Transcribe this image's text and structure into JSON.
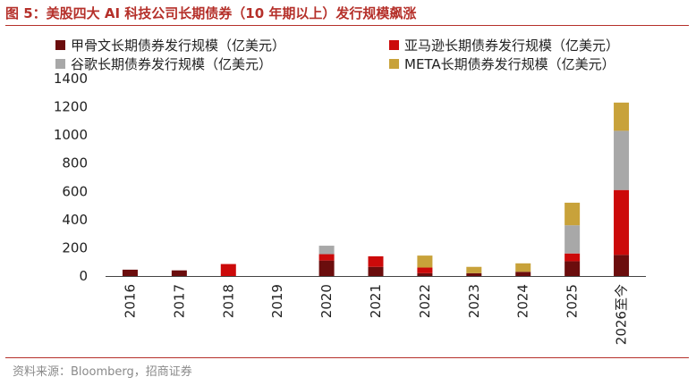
{
  "figure": {
    "title": "图 5：美股四大 AI 科技公司长期债券（10 年期以上）发行规模飙涨",
    "source": "资料来源：Bloomberg，招商证券"
  },
  "chart_data": {
    "type": "bar",
    "stacked": true,
    "categories": [
      "2016",
      "2017",
      "2018",
      "2019",
      "2020",
      "2021",
      "2022",
      "2023",
      "2024",
      "2025",
      "2026至今"
    ],
    "series": [
      {
        "name": "甲骨文长期债券发行规模（亿美元）",
        "color": "#6b0d0d",
        "values": [
          45,
          40,
          0,
          0,
          110,
          65,
          20,
          20,
          30,
          105,
          150
        ]
      },
      {
        "name": "亚马逊长期债券发行规模（亿美元）",
        "color": "#cc0a0a",
        "values": [
          0,
          0,
          85,
          0,
          45,
          75,
          40,
          0,
          0,
          55,
          460
        ]
      },
      {
        "name": "谷歌长期债券发行规模（亿美元）",
        "color": "#a8a8a8",
        "values": [
          0,
          0,
          0,
          0,
          60,
          0,
          0,
          0,
          0,
          200,
          420
        ]
      },
      {
        "name": "META长期债券发行规模（亿美元）",
        "color": "#c8a23a",
        "values": [
          0,
          0,
          0,
          0,
          0,
          0,
          85,
          45,
          60,
          160,
          200
        ]
      }
    ],
    "yticks": [
      0,
      200,
      400,
      600,
      800,
      1000,
      1200,
      1400
    ],
    "ylim": [
      0,
      1400
    ],
    "grid": false,
    "legend_position": "top"
  }
}
